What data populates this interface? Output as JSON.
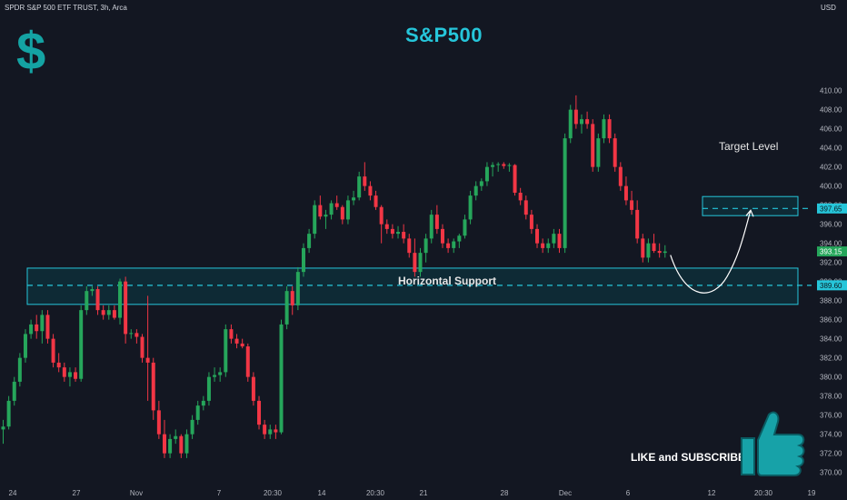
{
  "header": {
    "symbol": "SPDR S&P 500 ETF TRUST, 3h, Arca",
    "currency": "USD"
  },
  "annotations": {
    "title": "S&P500",
    "target_label": "Target Level",
    "support_label": "Horizontal Support",
    "cta": "LIKE and SUBSCRIBE",
    "dollar_logo": "$"
  },
  "colors": {
    "background": "#131722",
    "up": "#26a65b",
    "down": "#f23645",
    "accent": "#26c6da",
    "zone_fill": "#0e2a35",
    "zone_border": "#26c6da"
  },
  "icons": [
    "dollar-sign-icon",
    "thumbs-up-icon"
  ],
  "chart_data": {
    "type": "candlestick",
    "title": "S&P500",
    "ylabel": "USD",
    "ylim": [
      369,
      411
    ],
    "y_ticks": [
      370,
      372,
      374,
      376,
      378,
      380,
      382,
      384,
      386,
      388,
      390,
      392,
      394,
      396,
      398,
      400,
      402,
      404,
      406,
      408,
      410
    ],
    "x_tick_labels": [
      "24",
      "27",
      "Nov",
      "7",
      "20:30",
      "14",
      "20:30",
      "21",
      "28",
      "Dec",
      "6",
      "12",
      "20:30",
      "19"
    ],
    "price_tags": [
      {
        "value": 397.65,
        "label": "397.65",
        "kind": "target"
      },
      {
        "value": 393.15,
        "label": "393.15",
        "kind": "last"
      },
      {
        "value": 389.6,
        "label": "389.60",
        "kind": "support"
      }
    ],
    "zones": [
      {
        "name": "Target Level",
        "top": 398.9,
        "bottom": 396.9,
        "dashed": 397.65
      },
      {
        "name": "Horizontal Support",
        "top": 391.4,
        "bottom": 387.6,
        "dashed": 389.6
      }
    ],
    "candles": [
      [
        374.5,
        375.5,
        373.0,
        374.8
      ],
      [
        374.8,
        378.0,
        374.5,
        377.5
      ],
      [
        377.5,
        380.0,
        377.0,
        379.5
      ],
      [
        379.5,
        382.5,
        379.0,
        382.0
      ],
      [
        382.0,
        385.0,
        381.5,
        384.5
      ],
      [
        384.5,
        386.0,
        384.0,
        385.5
      ],
      [
        385.5,
        386.5,
        384.0,
        384.8
      ],
      [
        384.8,
        387.0,
        383.5,
        386.5
      ],
      [
        386.5,
        387.0,
        383.5,
        384.0
      ],
      [
        384.0,
        384.5,
        381.0,
        381.5
      ],
      [
        381.5,
        382.5,
        380.5,
        381.0
      ],
      [
        381.0,
        381.5,
        379.5,
        380.0
      ],
      [
        380.0,
        381.0,
        379.0,
        380.5
      ],
      [
        380.5,
        381.0,
        379.5,
        379.8
      ],
      [
        379.8,
        387.5,
        379.5,
        387.0
      ],
      [
        387.0,
        389.5,
        386.5,
        389.0
      ],
      [
        389.0,
        389.5,
        388.5,
        389.2
      ],
      [
        389.2,
        389.5,
        386.5,
        387.0
      ],
      [
        387.0,
        387.5,
        386.0,
        386.5
      ],
      [
        386.5,
        387.5,
        386.0,
        387.0
      ],
      [
        387.0,
        387.5,
        386.0,
        386.2
      ],
      [
        386.2,
        390.3,
        385.5,
        390.0
      ],
      [
        390.0,
        390.5,
        383.5,
        384.5
      ],
      [
        384.5,
        385.0,
        384.0,
        384.6
      ],
      [
        384.6,
        385.0,
        383.5,
        384.2
      ],
      [
        384.2,
        384.5,
        381.5,
        382.0
      ],
      [
        382.0,
        388.5,
        377.5,
        381.5
      ],
      [
        381.5,
        382.0,
        375.5,
        376.5
      ],
      [
        376.5,
        377.5,
        373.5,
        374.0
      ],
      [
        374.0,
        375.5,
        371.5,
        372.0
      ],
      [
        372.0,
        374.0,
        371.5,
        373.5
      ],
      [
        373.5,
        374.5,
        373.0,
        373.8
      ],
      [
        373.8,
        374.0,
        371.5,
        372.0
      ],
      [
        372.0,
        374.5,
        371.5,
        374.0
      ],
      [
        374.0,
        376.0,
        373.5,
        375.5
      ],
      [
        375.5,
        377.5,
        375.0,
        377.0
      ],
      [
        377.0,
        378.0,
        376.5,
        377.5
      ],
      [
        377.5,
        380.5,
        377.0,
        380.0
      ],
      [
        380.0,
        381.0,
        379.5,
        380.2
      ],
      [
        380.2,
        381.0,
        379.5,
        380.5
      ],
      [
        380.5,
        385.5,
        380.0,
        385.0
      ],
      [
        385.0,
        385.5,
        383.5,
        384.0
      ],
      [
        384.0,
        384.5,
        383.0,
        383.5
      ],
      [
        383.5,
        384.0,
        383.0,
        383.2
      ],
      [
        383.2,
        383.5,
        379.5,
        380.0
      ],
      [
        380.0,
        380.5,
        377.0,
        377.5
      ],
      [
        377.5,
        378.0,
        374.5,
        375.0
      ],
      [
        375.0,
        375.5,
        373.5,
        374.0
      ],
      [
        374.0,
        375.0,
        373.5,
        374.5
      ],
      [
        374.5,
        375.0,
        373.5,
        374.2
      ],
      [
        374.2,
        386.0,
        374.0,
        385.5
      ],
      [
        385.5,
        389.5,
        385.0,
        389.0
      ],
      [
        389.0,
        389.5,
        386.5,
        387.5
      ],
      [
        387.5,
        391.5,
        387.0,
        391.0
      ],
      [
        391.0,
        394.0,
        390.5,
        393.5
      ],
      [
        393.5,
        395.5,
        393.0,
        395.0
      ],
      [
        395.0,
        398.5,
        394.5,
        398.0
      ],
      [
        398.0,
        399.0,
        396.5,
        396.8
      ],
      [
        396.8,
        397.5,
        395.5,
        397.0
      ],
      [
        397.0,
        398.5,
        396.5,
        398.2
      ],
      [
        398.2,
        399.0,
        397.5,
        397.8
      ],
      [
        397.8,
        398.0,
        396.0,
        396.5
      ],
      [
        396.5,
        399.0,
        396.0,
        398.5
      ],
      [
        398.5,
        399.5,
        398.0,
        398.8
      ],
      [
        398.8,
        401.5,
        398.5,
        401.0
      ],
      [
        401.0,
        402.5,
        399.5,
        400.0
      ],
      [
        400.0,
        400.5,
        398.5,
        399.0
      ],
      [
        399.0,
        399.5,
        397.5,
        397.8
      ],
      [
        397.8,
        398.0,
        394.0,
        396.0
      ],
      [
        396.0,
        396.5,
        395.0,
        395.5
      ],
      [
        395.5,
        396.0,
        394.5,
        395.0
      ],
      [
        395.0,
        395.8,
        394.5,
        395.2
      ],
      [
        395.2,
        396.0,
        394.0,
        394.5
      ],
      [
        394.5,
        395.0,
        392.5,
        393.0
      ],
      [
        393.0,
        394.5,
        390.5,
        391.0
      ],
      [
        391.0,
        393.5,
        390.5,
        393.0
      ],
      [
        393.0,
        395.0,
        392.0,
        394.5
      ],
      [
        394.5,
        397.5,
        394.0,
        397.0
      ],
      [
        397.0,
        398.0,
        395.0,
        395.5
      ],
      [
        395.5,
        396.0,
        393.5,
        394.0
      ],
      [
        394.0,
        394.5,
        393.0,
        393.5
      ],
      [
        393.5,
        394.5,
        393.0,
        394.2
      ],
      [
        394.2,
        395.0,
        393.5,
        394.8
      ],
      [
        394.8,
        397.0,
        394.5,
        396.5
      ],
      [
        396.5,
        399.5,
        396.0,
        399.0
      ],
      [
        399.0,
        400.5,
        398.5,
        400.0
      ],
      [
        400.0,
        400.8,
        399.5,
        400.5
      ],
      [
        400.5,
        402.5,
        400.0,
        402.0
      ],
      [
        402.0,
        402.5,
        401.0,
        402.2
      ],
      [
        402.2,
        402.5,
        401.5,
        402.3
      ],
      [
        402.3,
        402.5,
        401.8,
        402.1
      ],
      [
        402.1,
        402.4,
        401.5,
        402.2
      ],
      [
        402.2,
        402.3,
        399.0,
        399.3
      ],
      [
        399.3,
        399.8,
        398.0,
        398.5
      ],
      [
        398.5,
        399.0,
        396.5,
        397.0
      ],
      [
        397.0,
        397.5,
        395.0,
        395.5
      ],
      [
        395.5,
        396.0,
        393.5,
        394.0
      ],
      [
        394.0,
        394.5,
        393.0,
        393.5
      ],
      [
        393.5,
        394.5,
        393.0,
        394.0
      ],
      [
        394.0,
        395.5,
        393.5,
        395.0
      ],
      [
        395.0,
        395.5,
        393.0,
        393.5
      ],
      [
        393.5,
        405.5,
        393.0,
        405.0
      ],
      [
        405.0,
        408.5,
        404.5,
        408.0
      ],
      [
        408.0,
        409.5,
        406.0,
        406.5
      ],
      [
        406.5,
        407.5,
        405.5,
        407.0
      ],
      [
        407.0,
        407.8,
        406.0,
        406.5
      ],
      [
        406.5,
        407.0,
        401.5,
        402.0
      ],
      [
        402.0,
        405.5,
        401.5,
        405.0
      ],
      [
        405.0,
        407.5,
        404.5,
        407.0
      ],
      [
        407.0,
        407.5,
        404.5,
        405.0
      ],
      [
        405.0,
        405.5,
        401.5,
        402.0
      ],
      [
        402.0,
        402.5,
        399.5,
        400.0
      ],
      [
        400.0,
        401.0,
        398.0,
        398.5
      ],
      [
        398.5,
        399.5,
        397.0,
        397.5
      ],
      [
        397.5,
        398.5,
        394.0,
        394.5
      ],
      [
        394.5,
        395.0,
        392.0,
        392.5
      ],
      [
        392.5,
        394.5,
        392.0,
        394.0
      ],
      [
        394.0,
        395.0,
        393.0,
        393.2
      ],
      [
        393.2,
        394.0,
        392.5,
        393.0
      ],
      [
        393.0,
        393.8,
        392.5,
        393.15
      ]
    ],
    "projection": {
      "shape": "curved arrow from last close down to support then up to target",
      "from": 393.15,
      "low": 388.6,
      "to": 397.65
    }
  }
}
